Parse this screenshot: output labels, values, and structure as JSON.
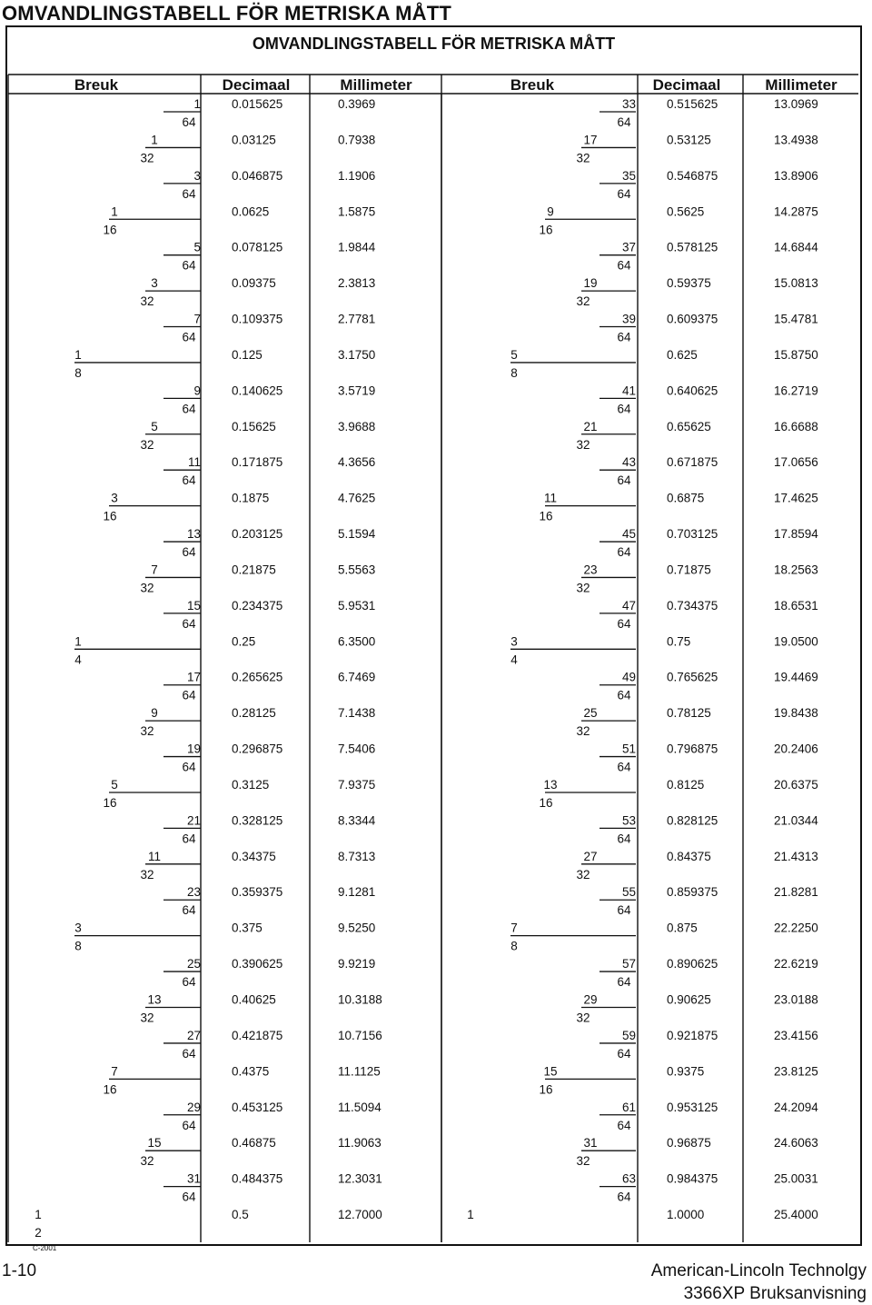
{
  "header": {
    "top_title": "OMVANDLINGSTABELL FÖR METRISKA MÅTT",
    "frame_title": "OMVANDLINGSTABELL FÖR METRISKA MÅTT"
  },
  "columns": {
    "left": [
      "Breuk",
      "Decimaal",
      "Millimeter"
    ],
    "right": [
      "Breuk",
      "Decimaal",
      "Millimeter"
    ]
  },
  "rows": [
    {
      "n": "1",
      "d": "64",
      "dec": "0.015625",
      "mm": "0.3969"
    },
    {
      "n": "1",
      "d": "32",
      "dec": "0.03125",
      "mm": "0.7938"
    },
    {
      "n": "3",
      "d": "64",
      "dec": "0.046875",
      "mm": "1.1906"
    },
    {
      "n": "1",
      "d": "16",
      "dec": "0.0625",
      "mm": "1.5875"
    },
    {
      "n": "5",
      "d": "64",
      "dec": "0.078125",
      "mm": "1.9844"
    },
    {
      "n": "3",
      "d": "32",
      "dec": "0.09375",
      "mm": "2.3813"
    },
    {
      "n": "7",
      "d": "64",
      "dec": "0.109375",
      "mm": "2.7781"
    },
    {
      "n": "1",
      "d": "8",
      "dec": "0.125",
      "mm": "3.1750"
    },
    {
      "n": "9",
      "d": "64",
      "dec": "0.140625",
      "mm": "3.5719"
    },
    {
      "n": "5",
      "d": "32",
      "dec": "0.15625",
      "mm": "3.9688"
    },
    {
      "n": "11",
      "d": "64",
      "dec": "0.171875",
      "mm": "4.3656"
    },
    {
      "n": "3",
      "d": "16",
      "dec": "0.1875",
      "mm": "4.7625"
    },
    {
      "n": "13",
      "d": "64",
      "dec": "0.203125",
      "mm": "5.1594"
    },
    {
      "n": "7",
      "d": "32",
      "dec": "0.21875",
      "mm": "5.5563"
    },
    {
      "n": "15",
      "d": "64",
      "dec": "0.234375",
      "mm": "5.9531"
    },
    {
      "n": "1",
      "d": "4",
      "dec": "0.25",
      "mm": "6.3500"
    },
    {
      "n": "17",
      "d": "64",
      "dec": "0.265625",
      "mm": "6.7469"
    },
    {
      "n": "9",
      "d": "32",
      "dec": "0.28125",
      "mm": "7.1438"
    },
    {
      "n": "19",
      "d": "64",
      "dec": "0.296875",
      "mm": "7.5406"
    },
    {
      "n": "5",
      "d": "16",
      "dec": "0.3125",
      "mm": "7.9375"
    },
    {
      "n": "21",
      "d": "64",
      "dec": "0.328125",
      "mm": "8.3344"
    },
    {
      "n": "11",
      "d": "32",
      "dec": "0.34375",
      "mm": "8.7313"
    },
    {
      "n": "23",
      "d": "64",
      "dec": "0.359375",
      "mm": "9.1281"
    },
    {
      "n": "3",
      "d": "8",
      "dec": "0.375",
      "mm": "9.5250"
    },
    {
      "n": "25",
      "d": "64",
      "dec": "0.390625",
      "mm": "9.9219"
    },
    {
      "n": "13",
      "d": "32",
      "dec": "0.40625",
      "mm": "10.3188"
    },
    {
      "n": "27",
      "d": "64",
      "dec": "0.421875",
      "mm": "10.7156"
    },
    {
      "n": "7",
      "d": "16",
      "dec": "0.4375",
      "mm": "11.1125"
    },
    {
      "n": "29",
      "d": "64",
      "dec": "0.453125",
      "mm": "11.5094"
    },
    {
      "n": "15",
      "d": "32",
      "dec": "0.46875",
      "mm": "11.9063"
    },
    {
      "n": "31",
      "d": "64",
      "dec": "0.484375",
      "mm": "12.3031"
    },
    {
      "n": "1",
      "d": "2",
      "dec": "0.5",
      "mm": "12.7000"
    }
  ],
  "rows_right": [
    {
      "n": "33",
      "d": "64",
      "dec": "0.515625",
      "mm": "13.0969"
    },
    {
      "n": "17",
      "d": "32",
      "dec": "0.53125",
      "mm": "13.4938"
    },
    {
      "n": "35",
      "d": "64",
      "dec": "0.546875",
      "mm": "13.8906"
    },
    {
      "n": "9",
      "d": "16",
      "dec": "0.5625",
      "mm": "14.2875"
    },
    {
      "n": "37",
      "d": "64",
      "dec": "0.578125",
      "mm": "14.6844"
    },
    {
      "n": "19",
      "d": "32",
      "dec": "0.59375",
      "mm": "15.0813"
    },
    {
      "n": "39",
      "d": "64",
      "dec": "0.609375",
      "mm": "15.4781"
    },
    {
      "n": "5",
      "d": "8",
      "dec": "0.625",
      "mm": "15.8750"
    },
    {
      "n": "41",
      "d": "64",
      "dec": "0.640625",
      "mm": "16.2719"
    },
    {
      "n": "21",
      "d": "32",
      "dec": "0.65625",
      "mm": "16.6688"
    },
    {
      "n": "43",
      "d": "64",
      "dec": "0.671875",
      "mm": "17.0656"
    },
    {
      "n": "11",
      "d": "16",
      "dec": "0.6875",
      "mm": "17.4625"
    },
    {
      "n": "45",
      "d": "64",
      "dec": "0.703125",
      "mm": "17.8594"
    },
    {
      "n": "23",
      "d": "32",
      "dec": "0.71875",
      "mm": "18.2563"
    },
    {
      "n": "47",
      "d": "64",
      "dec": "0.734375",
      "mm": "18.6531"
    },
    {
      "n": "3",
      "d": "4",
      "dec": "0.75",
      "mm": "19.0500"
    },
    {
      "n": "49",
      "d": "64",
      "dec": "0.765625",
      "mm": "19.4469"
    },
    {
      "n": "25",
      "d": "32",
      "dec": "0.78125",
      "mm": "19.8438"
    },
    {
      "n": "51",
      "d": "64",
      "dec": "0.796875",
      "mm": "20.2406"
    },
    {
      "n": "13",
      "d": "16",
      "dec": "0.8125",
      "mm": "20.6375"
    },
    {
      "n": "53",
      "d": "64",
      "dec": "0.828125",
      "mm": "21.0344"
    },
    {
      "n": "27",
      "d": "32",
      "dec": "0.84375",
      "mm": "21.4313"
    },
    {
      "n": "55",
      "d": "64",
      "dec": "0.859375",
      "mm": "21.8281"
    },
    {
      "n": "7",
      "d": "8",
      "dec": "0.875",
      "mm": "22.2250"
    },
    {
      "n": "57",
      "d": "64",
      "dec": "0.890625",
      "mm": "22.6219"
    },
    {
      "n": "29",
      "d": "32",
      "dec": "0.90625",
      "mm": "23.0188"
    },
    {
      "n": "59",
      "d": "64",
      "dec": "0.921875",
      "mm": "23.4156"
    },
    {
      "n": "15",
      "d": "16",
      "dec": "0.9375",
      "mm": "23.8125"
    },
    {
      "n": "61",
      "d": "64",
      "dec": "0.953125",
      "mm": "24.2094"
    },
    {
      "n": "31",
      "d": "32",
      "dec": "0.96875",
      "mm": "24.6063"
    },
    {
      "n": "63",
      "d": "64",
      "dec": "0.984375",
      "mm": "25.0031"
    },
    {
      "n": "1",
      "d": "",
      "dec": "1.0000",
      "mm": "25.4000"
    }
  ],
  "footer": {
    "copyright": "C-2001",
    "page": "1-10",
    "company": "American-Lincoln Technolgy",
    "manual": "3366XP Bruksanvisning"
  }
}
